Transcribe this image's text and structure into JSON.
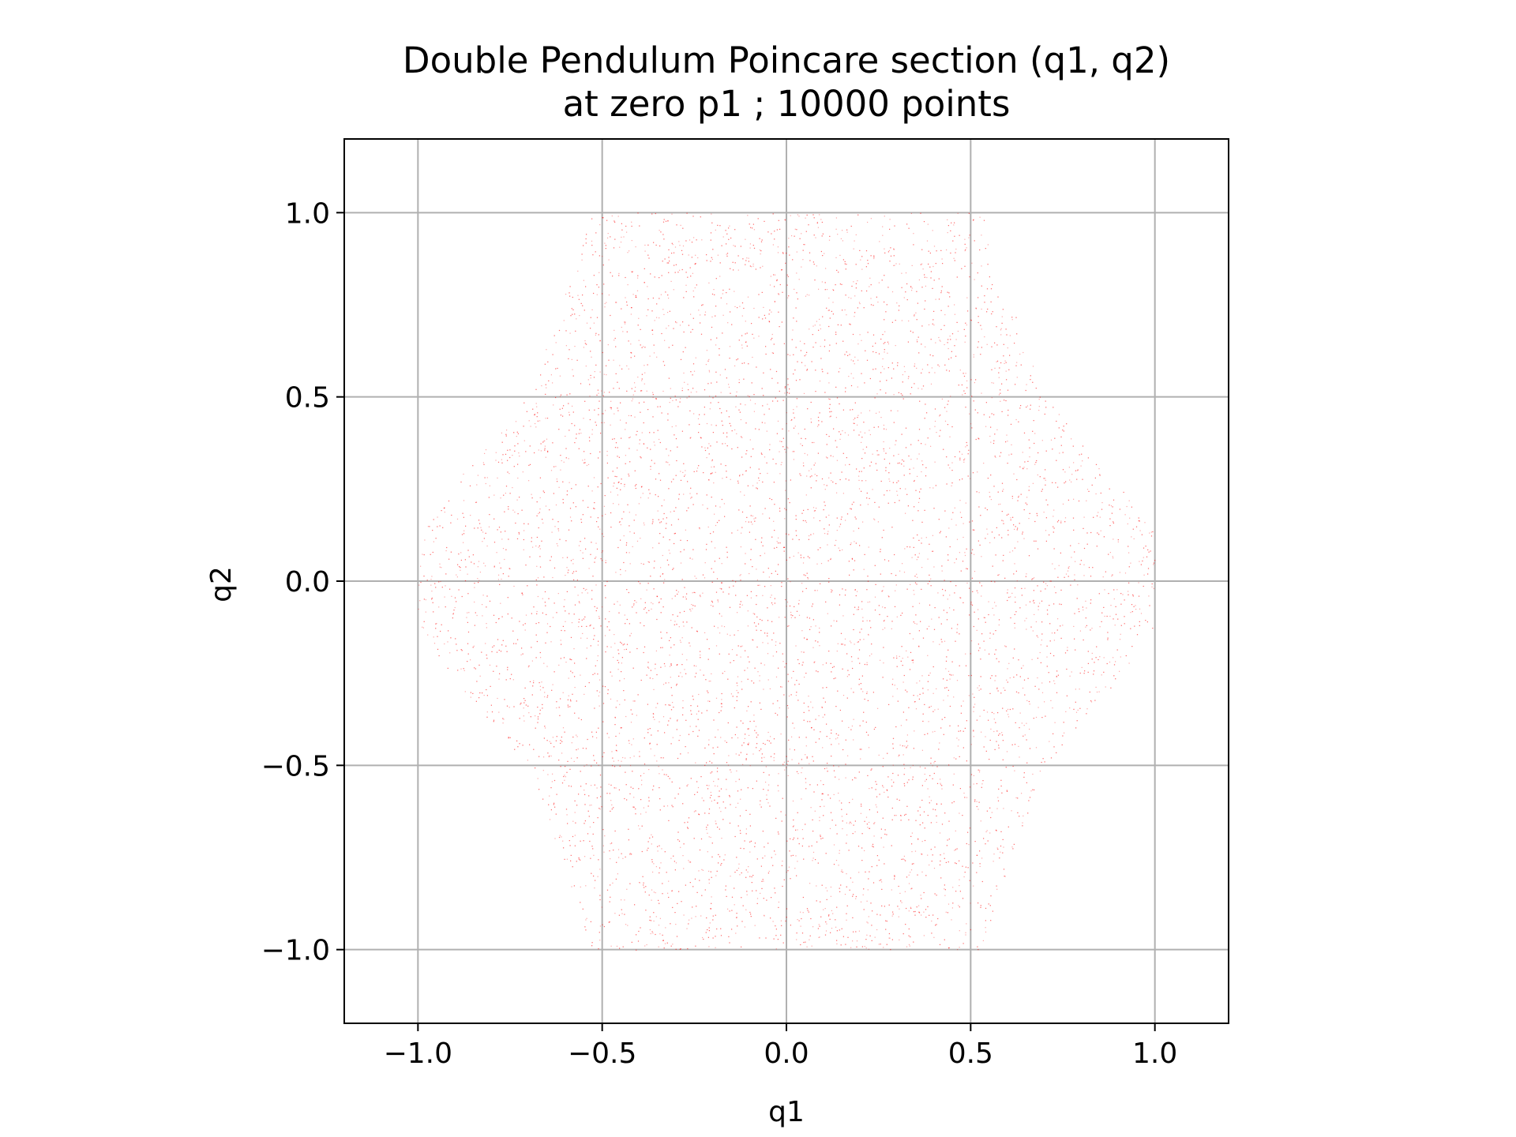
{
  "chart_data": {
    "type": "scatter",
    "title": "Double Pendulum Poincare section (q1, q2)",
    "subtitle": "at zero p1 ; 10000 points",
    "xlabel": "q1",
    "ylabel": "q2",
    "xlim": [
      -1.2,
      1.2
    ],
    "ylim": [
      -1.2,
      1.2
    ],
    "xticks": [
      -1.0,
      -0.5,
      0.0,
      0.5,
      1.0
    ],
    "yticks": [
      -1.0,
      -0.5,
      0.0,
      0.5,
      1.0
    ],
    "xtick_labels": [
      "−1.0",
      "−0.5",
      "0.0",
      "0.5",
      "1.0"
    ],
    "ytick_labels": [
      "−1.0",
      "−0.5",
      "0.0",
      "0.5",
      "1.0"
    ],
    "grid": true,
    "point_count": 10000,
    "point_color": "#ff0000",
    "grid_color": "#b0b0b0",
    "series": [
      {
        "region": "hexagon-like envelope with concave edges",
        "boundary": [
          [
            0.53,
            1.0
          ],
          [
            0.6,
            0.78
          ],
          [
            0.7,
            0.5
          ],
          [
            0.85,
            0.33
          ],
          [
            1.0,
            0.13
          ],
          [
            1.0,
            -0.13
          ],
          [
            0.85,
            -0.33
          ],
          [
            0.7,
            -0.5
          ],
          [
            0.6,
            -0.78
          ],
          [
            0.53,
            -1.0
          ],
          [
            -0.53,
            -1.0
          ],
          [
            -0.6,
            -0.78
          ],
          [
            -0.7,
            -0.5
          ],
          [
            -0.85,
            -0.33
          ],
          [
            -1.0,
            -0.13
          ],
          [
            -1.0,
            0.13
          ],
          [
            -0.85,
            0.33
          ],
          [
            -0.7,
            0.5
          ],
          [
            -0.6,
            0.78
          ],
          [
            -0.53,
            1.0
          ]
        ]
      }
    ]
  }
}
